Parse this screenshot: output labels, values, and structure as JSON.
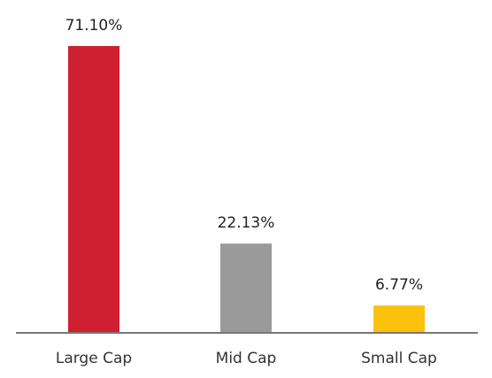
{
  "chart_data": {
    "type": "bar",
    "categories": [
      "Large Cap",
      "Mid Cap",
      "Small Cap"
    ],
    "values": [
      71.1,
      22.13,
      6.77
    ],
    "data_labels": [
      "71.10%",
      "22.13%",
      "6.77%"
    ],
    "colors": [
      "#cf2031",
      "#9a9a9a",
      "#fcc10d"
    ],
    "axis_color": "#777777",
    "ylim": [
      0,
      71.1
    ],
    "grid": false,
    "title": "",
    "xlabel": "",
    "ylabel": ""
  }
}
